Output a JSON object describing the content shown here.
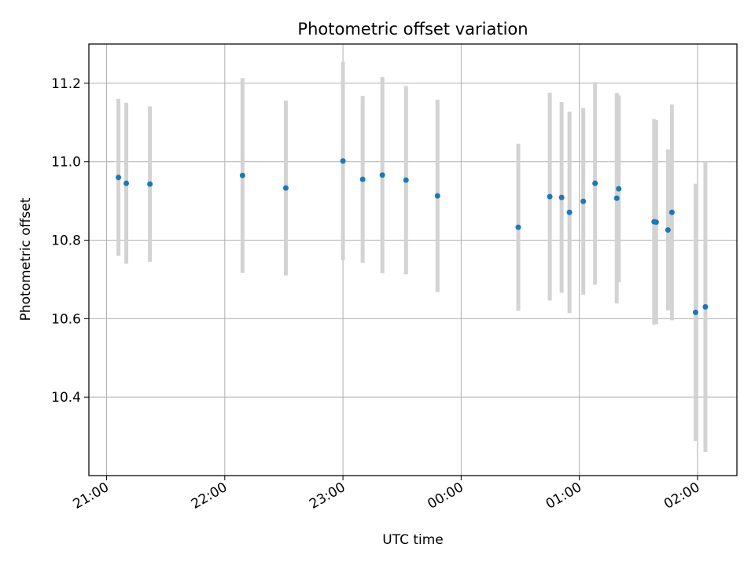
{
  "chart_data": {
    "type": "scatter",
    "title": "Photometric offset variation",
    "xlabel": "UTC time",
    "ylabel": "Photometric offset",
    "x_ticks": [
      "21:00",
      "22:00",
      "23:00",
      "00:00",
      "01:00",
      "02:00"
    ],
    "y_ticks": [
      "10.4",
      "10.6",
      "10.8",
      "11.0",
      "11.2"
    ],
    "grid": true,
    "xlim_minutes_after_2100": [
      -9,
      320
    ],
    "ylim": [
      10.2,
      11.3
    ],
    "colors": {
      "point": "#1f77b4",
      "errorbar": "#d3d3d3",
      "grid": "#b0b0b0"
    },
    "series": [
      {
        "points": [
          {
            "t": "21:06",
            "y": 10.96,
            "err": 0.2
          },
          {
            "t": "21:10",
            "y": 10.945,
            "err": 0.205
          },
          {
            "t": "21:22",
            "y": 10.943,
            "err": 0.198
          },
          {
            "t": "22:09",
            "y": 10.965,
            "err": 0.248
          },
          {
            "t": "22:31",
            "y": 10.933,
            "err": 0.223
          },
          {
            "t": "23:00",
            "y": 11.002,
            "err": 0.253
          },
          {
            "t": "23:10",
            "y": 10.955,
            "err": 0.213
          },
          {
            "t": "23:20",
            "y": 10.966,
            "err": 0.25
          },
          {
            "t": "23:32",
            "y": 10.953,
            "err": 0.24
          },
          {
            "t": "23:48",
            "y": 10.913,
            "err": 0.245
          },
          {
            "t": "00:29",
            "y": 10.833,
            "err": 0.213
          },
          {
            "t": "00:45",
            "y": 10.911,
            "err": 0.265
          },
          {
            "t": "00:51",
            "y": 10.909,
            "err": 0.243
          },
          {
            "t": "00:55",
            "y": 10.871,
            "err": 0.257
          },
          {
            "t": "01:02",
            "y": 10.899,
            "err": 0.238
          },
          {
            "t": "01:08",
            "y": 10.945,
            "err": 0.258
          },
          {
            "t": "01:19",
            "y": 10.907,
            "err": 0.268
          },
          {
            "t": "01:20",
            "y": 10.931,
            "err": 0.238
          },
          {
            "t": "01:38",
            "y": 10.847,
            "err": 0.262
          },
          {
            "t": "01:39",
            "y": 10.846,
            "err": 0.26
          },
          {
            "t": "01:45",
            "y": 10.826,
            "err": 0.205
          },
          {
            "t": "01:47",
            "y": 10.871,
            "err": 0.275
          },
          {
            "t": "01:59",
            "y": 10.616,
            "err": 0.328
          },
          {
            "t": "02:04",
            "y": 10.63,
            "err": 0.37
          }
        ]
      }
    ]
  }
}
